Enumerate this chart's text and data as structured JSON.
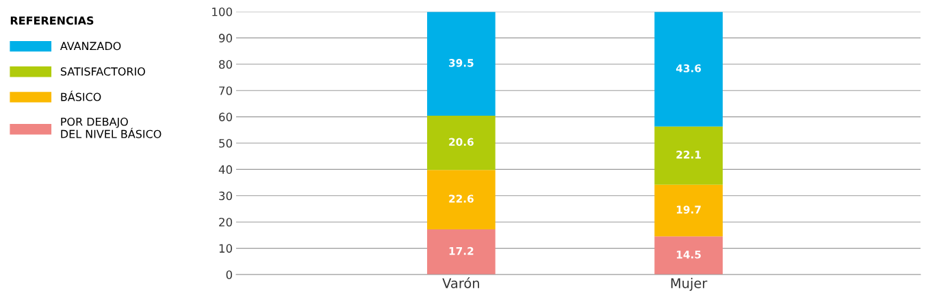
{
  "chart_data": {
    "type": "bar",
    "stacked": true,
    "categories": [
      "Varón",
      "Mujer"
    ],
    "series": [
      {
        "name": "POR DEBAJO\nDEL NIVEL BÁSICO",
        "color": "#f08582",
        "values": [
          17.2,
          14.5
        ]
      },
      {
        "name": "BÁSICO",
        "color": "#fbb900",
        "values": [
          22.6,
          19.7
        ]
      },
      {
        "name": "SATISFACTORIO",
        "color": "#b0cb0b",
        "values": [
          20.6,
          22.1
        ]
      },
      {
        "name": "AVANZADO",
        "color": "#00b0e8",
        "values": [
          39.5,
          43.6
        ]
      }
    ],
    "legend_title": "REFERENCIAS",
    "legend": "left",
    "ylim": [
      0,
      100
    ],
    "yticks": [
      0,
      10,
      20,
      30,
      40,
      50,
      60,
      70,
      80,
      90,
      100
    ],
    "grid": "y",
    "data_labels": true
  }
}
